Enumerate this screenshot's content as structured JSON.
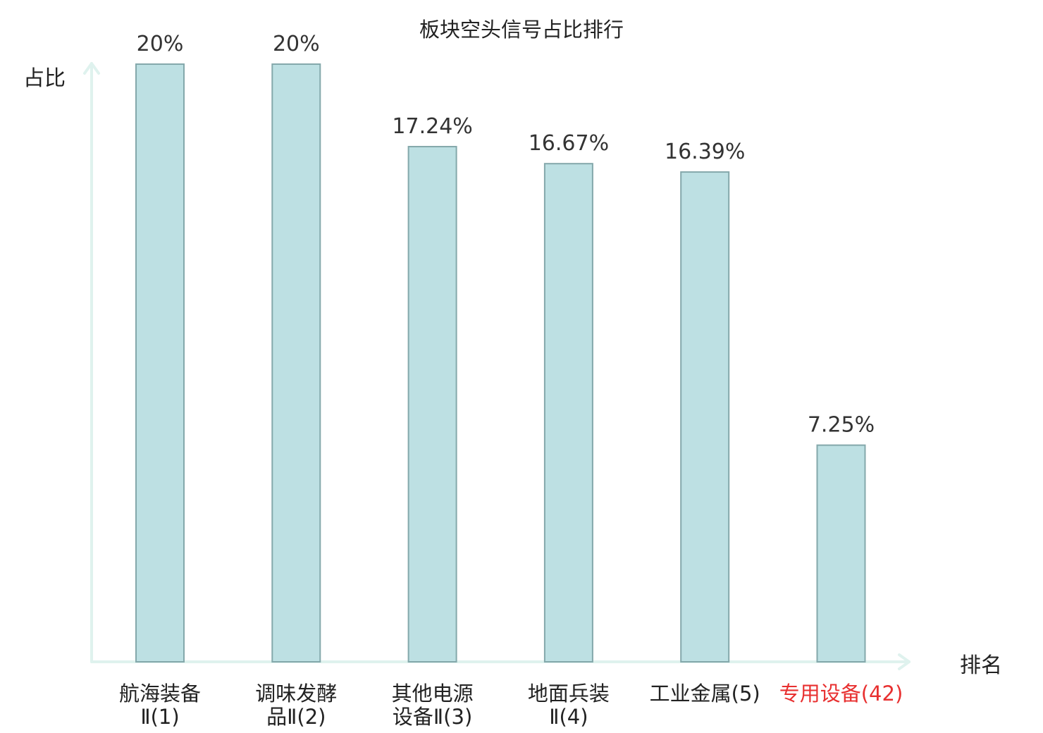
{
  "chart_data": {
    "type": "bar",
    "title": "板块空头信号占比排行",
    "xlabel": "排名",
    "ylabel": "占比",
    "categories": [
      [
        "航海装备",
        "Ⅱ(1)"
      ],
      [
        "调味发酵",
        "品Ⅱ(2)"
      ],
      [
        "其他电源",
        "设备Ⅱ(3)"
      ],
      [
        "地面兵装",
        "Ⅱ(4)"
      ],
      [
        "工业金属(5)"
      ],
      [
        "专用设备(42)"
      ]
    ],
    "values": [
      20,
      20,
      17.24,
      16.67,
      16.39,
      7.25
    ],
    "value_labels": [
      "20%",
      "20%",
      "17.24%",
      "16.67%",
      "16.39%",
      "7.25%"
    ],
    "highlight_index": 5,
    "ylim": [
      0,
      20
    ],
    "colors": {
      "bar_fill": "#bde0e3",
      "bar_stroke": "#84a8ab",
      "axis": "#dff2ee",
      "highlight_text": "#e83030",
      "text": "#222222"
    }
  }
}
